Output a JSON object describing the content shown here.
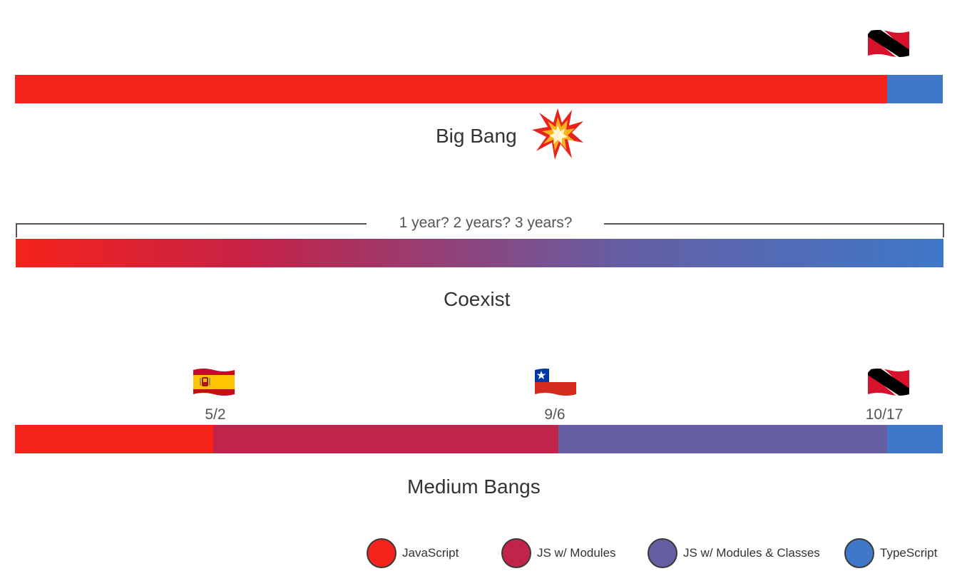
{
  "colors": {
    "javascript": "#f5231b",
    "js_modules": "#c2234a",
    "js_modules_classes": "#655ea3",
    "typescript": "#3f78c8"
  },
  "sections": {
    "big_bang": {
      "title": "Big Bang",
      "icon": "collision-icon",
      "flag_icon": "trinidad-tobago-flag-icon",
      "segments": [
        {
          "stage": "javascript",
          "fraction": 0.94
        },
        {
          "stage": "typescript",
          "fraction": 0.06
        }
      ]
    },
    "coexist": {
      "title": "Coexist",
      "duration_label": "1 year? 2 years? 3 years?",
      "gradient": [
        "javascript",
        "js_modules",
        "js_modules_classes",
        "typescript"
      ]
    },
    "medium_bangs": {
      "title": "Medium Bangs",
      "milestones": [
        {
          "date": "5/2",
          "flag_icon": "spain-flag-icon"
        },
        {
          "date": "9/6",
          "flag_icon": "chile-flag-icon"
        },
        {
          "date": "10/17",
          "flag_icon": "trinidad-tobago-flag-icon"
        }
      ],
      "segments": [
        {
          "stage": "javascript",
          "fraction": 0.214
        },
        {
          "stage": "js_modules",
          "fraction": 0.372
        },
        {
          "stage": "js_modules_classes",
          "fraction": 0.354
        },
        {
          "stage": "typescript",
          "fraction": 0.06
        }
      ]
    }
  },
  "legend": [
    {
      "label": "JavaScript",
      "stage": "javascript"
    },
    {
      "label": "JS w/ Modules",
      "stage": "js_modules"
    },
    {
      "label": "JS w/ Modules & Classes",
      "stage": "js_modules_classes"
    },
    {
      "label": "TypeScript",
      "stage": "typescript"
    }
  ]
}
